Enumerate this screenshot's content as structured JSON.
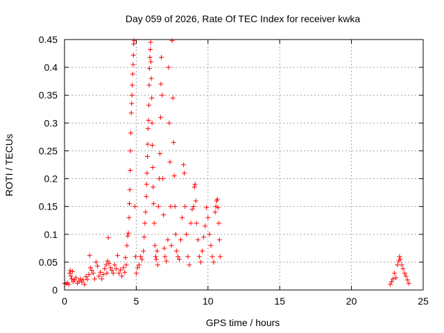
{
  "chart_data": {
    "type": "scatter",
    "title": "Day 059 of 2026, Rate Of TEC Index for receiver kwka",
    "xlabel": "GPS time / hours",
    "ylabel": "ROTI / TECUs",
    "xlim": [
      0,
      25
    ],
    "ylim": [
      0,
      0.45
    ],
    "xticks": [
      0,
      5,
      10,
      15,
      20,
      25
    ],
    "xtick_labels": [
      "0",
      "5",
      "10",
      "15",
      "20",
      "25"
    ],
    "yticks": [
      0,
      0.05,
      0.1,
      0.15,
      0.2,
      0.25,
      0.3,
      0.35,
      0.4,
      0.45
    ],
    "ytick_labels": [
      "0",
      "0.05",
      "0.1",
      "0.15",
      "0.2",
      "0.25",
      "0.3",
      "0.35",
      "0.4",
      "0.45"
    ],
    "grid": true,
    "marker": "+",
    "color": "#ff0000",
    "series": [
      {
        "name": "ROTI",
        "points": [
          [
            0.0,
            0.012
          ],
          [
            0.1,
            0.011
          ],
          [
            0.2,
            0.013
          ],
          [
            0.3,
            0.01
          ],
          [
            0.35,
            0.03
          ],
          [
            0.4,
            0.035
          ],
          [
            0.45,
            0.025
          ],
          [
            0.5,
            0.02
          ],
          [
            0.55,
            0.033
          ],
          [
            0.6,
            0.015
          ],
          [
            0.7,
            0.018
          ],
          [
            0.8,
            0.022
          ],
          [
            0.9,
            0.012
          ],
          [
            1.0,
            0.016
          ],
          [
            1.1,
            0.02
          ],
          [
            1.2,
            0.014
          ],
          [
            1.3,
            0.018
          ],
          [
            1.4,
            0.01
          ],
          [
            1.5,
            0.024
          ],
          [
            1.6,
            0.019
          ],
          [
            1.7,
            0.028
          ],
          [
            1.75,
            0.062
          ],
          [
            1.8,
            0.04
          ],
          [
            1.9,
            0.035
          ],
          [
            2.0,
            0.03
          ],
          [
            2.1,
            0.02
          ],
          [
            2.2,
            0.05
          ],
          [
            2.3,
            0.043
          ],
          [
            2.4,
            0.025
          ],
          [
            2.5,
            0.032
          ],
          [
            2.6,
            0.02
          ],
          [
            2.7,
            0.028
          ],
          [
            2.8,
            0.038
          ],
          [
            2.9,
            0.045
          ],
          [
            2.95,
            0.03
          ],
          [
            3.0,
            0.052
          ],
          [
            3.05,
            0.094
          ],
          [
            3.1,
            0.048
          ],
          [
            3.2,
            0.04
          ],
          [
            3.3,
            0.035
          ],
          [
            3.4,
            0.03
          ],
          [
            3.5,
            0.045
          ],
          [
            3.6,
            0.038
          ],
          [
            3.7,
            0.062
          ],
          [
            3.8,
            0.03
          ],
          [
            3.9,
            0.036
          ],
          [
            4.0,
            0.025
          ],
          [
            4.1,
            0.04
          ],
          [
            4.2,
            0.032
          ],
          [
            4.25,
            0.058
          ],
          [
            4.3,
            0.045
          ],
          [
            4.35,
            0.08
          ],
          [
            4.4,
            0.097
          ],
          [
            4.45,
            0.102
          ],
          [
            4.5,
            0.13
          ],
          [
            4.52,
            0.155
          ],
          [
            4.55,
            0.18
          ],
          [
            4.58,
            0.215
          ],
          [
            4.6,
            0.25
          ],
          [
            4.62,
            0.282
          ],
          [
            4.65,
            0.318
          ],
          [
            4.68,
            0.335
          ],
          [
            4.7,
            0.35
          ],
          [
            4.72,
            0.368
          ],
          [
            4.75,
            0.388
          ],
          [
            4.78,
            0.405
          ],
          [
            4.8,
            0.422
          ],
          [
            4.82,
            0.442
          ],
          [
            4.85,
            0.448
          ],
          [
            4.9,
            0.15
          ],
          [
            4.95,
            0.06
          ],
          [
            5.0,
            0.03
          ],
          [
            5.1,
            0.04
          ],
          [
            5.2,
            0.045
          ],
          [
            5.3,
            0.06
          ],
          [
            5.4,
            0.055
          ],
          [
            5.5,
            0.07
          ],
          [
            5.55,
            0.095
          ],
          [
            5.6,
            0.12
          ],
          [
            5.65,
            0.14
          ],
          [
            5.7,
            0.168
          ],
          [
            5.72,
            0.19
          ],
          [
            5.75,
            0.21
          ],
          [
            5.78,
            0.24
          ],
          [
            5.8,
            0.262
          ],
          [
            5.82,
            0.29
          ],
          [
            5.85,
            0.305
          ],
          [
            5.88,
            0.332
          ],
          [
            5.9,
            0.368
          ],
          [
            5.92,
            0.398
          ],
          [
            5.95,
            0.418
          ],
          [
            5.98,
            0.432
          ],
          [
            6.0,
            0.445
          ],
          [
            6.02,
            0.41
          ],
          [
            6.05,
            0.38
          ],
          [
            6.08,
            0.345
          ],
          [
            6.1,
            0.3
          ],
          [
            6.12,
            0.26
          ],
          [
            6.15,
            0.22
          ],
          [
            6.18,
            0.185
          ],
          [
            6.2,
            0.155
          ],
          [
            6.25,
            0.12
          ],
          [
            6.3,
            0.08
          ],
          [
            6.35,
            0.06
          ],
          [
            6.4,
            0.055
          ],
          [
            6.45,
            0.07
          ],
          [
            6.5,
            0.045
          ],
          [
            6.55,
            0.15
          ],
          [
            6.6,
            0.2
          ],
          [
            6.65,
            0.245
          ],
          [
            6.7,
            0.31
          ],
          [
            6.72,
            0.37
          ],
          [
            6.75,
            0.418
          ],
          [
            6.8,
            0.35
          ],
          [
            6.85,
            0.2
          ],
          [
            6.9,
            0.135
          ],
          [
            6.95,
            0.075
          ],
          [
            7.0,
            0.06
          ],
          [
            7.1,
            0.052
          ],
          [
            7.2,
            0.09
          ],
          [
            7.25,
            0.4
          ],
          [
            7.3,
            0.3
          ],
          [
            7.35,
            0.23
          ],
          [
            7.4,
            0.15
          ],
          [
            7.45,
            0.08
          ],
          [
            7.5,
            0.448
          ],
          [
            7.55,
            0.345
          ],
          [
            7.6,
            0.265
          ],
          [
            7.65,
            0.205
          ],
          [
            7.7,
            0.15
          ],
          [
            7.75,
            0.1
          ],
          [
            7.8,
            0.07
          ],
          [
            7.9,
            0.06
          ],
          [
            8.0,
            0.055
          ],
          [
            8.1,
            0.09
          ],
          [
            8.2,
            0.13
          ],
          [
            8.3,
            0.225
          ],
          [
            8.35,
            0.21
          ],
          [
            8.4,
            0.15
          ],
          [
            8.5,
            0.1
          ],
          [
            8.6,
            0.06
          ],
          [
            8.7,
            0.045
          ],
          [
            8.8,
            0.12
          ],
          [
            8.9,
            0.145
          ],
          [
            9.0,
            0.15
          ],
          [
            9.05,
            0.185
          ],
          [
            9.1,
            0.19
          ],
          [
            9.15,
            0.16
          ],
          [
            9.2,
            0.12
          ],
          [
            9.3,
            0.09
          ],
          [
            9.4,
            0.06
          ],
          [
            9.5,
            0.05
          ],
          [
            9.6,
            0.07
          ],
          [
            9.7,
            0.095
          ],
          [
            9.8,
            0.115
          ],
          [
            9.9,
            0.148
          ],
          [
            10.0,
            0.13
          ],
          [
            10.1,
            0.1
          ],
          [
            10.2,
            0.08
          ],
          [
            10.3,
            0.06
          ],
          [
            10.4,
            0.05
          ],
          [
            10.5,
            0.14
          ],
          [
            10.55,
            0.15
          ],
          [
            10.6,
            0.16
          ],
          [
            10.65,
            0.163
          ],
          [
            10.7,
            0.148
          ],
          [
            10.75,
            0.12
          ],
          [
            10.8,
            0.09
          ],
          [
            10.85,
            0.06
          ],
          [
            22.7,
            0.01
          ],
          [
            22.8,
            0.015
          ],
          [
            22.9,
            0.02
          ],
          [
            23.0,
            0.03
          ],
          [
            23.1,
            0.022
          ],
          [
            23.2,
            0.045
          ],
          [
            23.3,
            0.052
          ],
          [
            23.35,
            0.06
          ],
          [
            23.4,
            0.055
          ],
          [
            23.5,
            0.045
          ],
          [
            23.6,
            0.038
          ],
          [
            23.7,
            0.03
          ],
          [
            23.8,
            0.025
          ],
          [
            23.9,
            0.018
          ],
          [
            24.0,
            0.012
          ]
        ]
      }
    ]
  }
}
